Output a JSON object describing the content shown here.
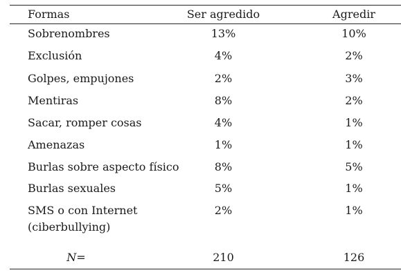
{
  "table": {
    "headers": {
      "formas": "Formas",
      "ser_agredido": "Ser agredido",
      "agredir": "Agredir"
    },
    "rows": [
      {
        "forma": "Sobrenombres",
        "ser_agredido": "13%",
        "agredir": "10%"
      },
      {
        "forma": "Exclusión",
        "ser_agredido": "4%",
        "agredir": "2%"
      },
      {
        "forma": "Golpes, empujones",
        "ser_agredido": "2%",
        "agredir": "3%"
      },
      {
        "forma": "Mentiras",
        "ser_agredido": "8%",
        "agredir": "2%"
      },
      {
        "forma": "Sacar, romper cosas",
        "ser_agredido": "4%",
        "agredir": "1%"
      },
      {
        "forma": "Amenazas",
        "ser_agredido": "1%",
        "agredir": "1%"
      },
      {
        "forma": "Burlas sobre aspecto físico",
        "ser_agredido": "8%",
        "agredir": "5%"
      },
      {
        "forma": "Burlas sexuales",
        "ser_agredido": "5%",
        "agredir": "1%"
      },
      {
        "forma": "SMS o con Internet (ciberbullying)",
        "ser_agredido": "2%",
        "agredir": "1%"
      }
    ],
    "total": {
      "label": "N=",
      "ser_agredido": "210",
      "agredir": "126"
    }
  }
}
